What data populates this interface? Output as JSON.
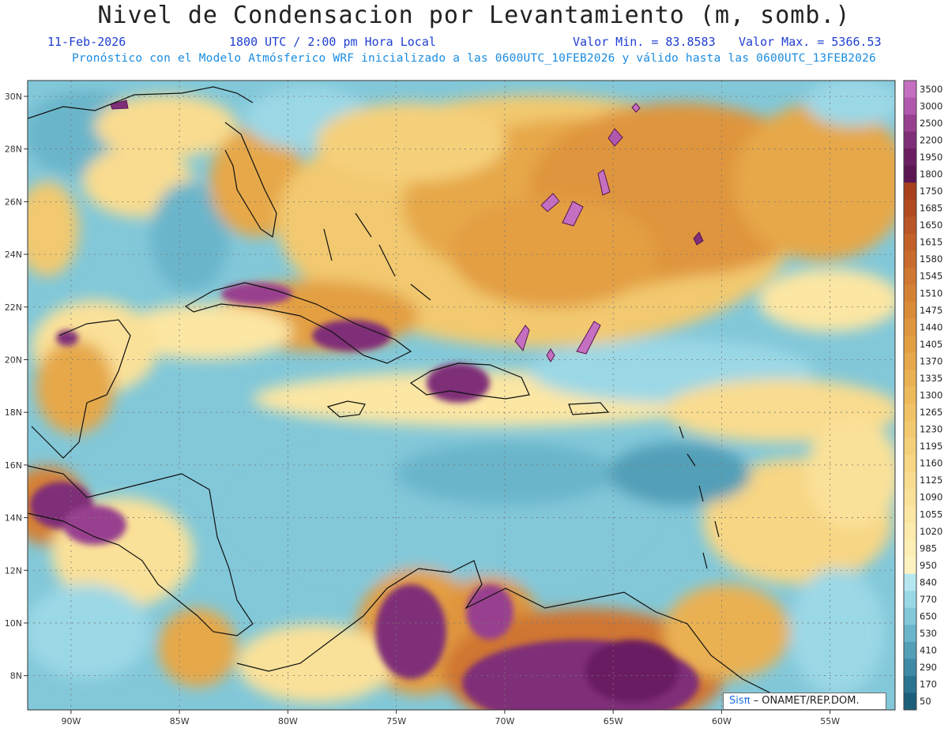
{
  "title": "Nivel de Condensacion por Levantamiento (m, somb.)",
  "header": {
    "date": "11-Feb-2026",
    "time": "1800 UTC / 2:00 pm Hora Local",
    "min_label": "Valor Min. = 83.8583",
    "max_label": "Valor Max. = 5366.53",
    "min_value": 83.8583,
    "max_value": 5366.53,
    "subtitle": "Pronóstico con el Modelo Atmósferico WRF inicializado a las 0600UTC_10FEB2026 y válido hasta las  0600UTC_13FEB2026"
  },
  "map": {
    "lon_range": [
      -92,
      -52
    ],
    "lat_range": [
      6.7,
      30.6
    ],
    "lat_ticks": [
      "30N",
      "28N",
      "26N",
      "24N",
      "22N",
      "20N",
      "18N",
      "16N",
      "14N",
      "12N",
      "10N",
      "8N"
    ],
    "lat_values": [
      30,
      28,
      26,
      24,
      22,
      20,
      18,
      16,
      14,
      12,
      10,
      8
    ],
    "lon_ticks": [
      "90W",
      "85W",
      "80W",
      "75W",
      "70W",
      "65W",
      "60W",
      "55W"
    ],
    "lon_values": [
      -90,
      -85,
      -80,
      -75,
      -70,
      -65,
      -60,
      -55
    ]
  },
  "legend": {
    "levels": [
      "3500",
      "3000",
      "2500",
      "2200",
      "1950",
      "1800",
      "1750",
      "1685",
      "1650",
      "1615",
      "1580",
      "1545",
      "1510",
      "1475",
      "1440",
      "1405",
      "1370",
      "1335",
      "1300",
      "1265",
      "1230",
      "1195",
      "1160",
      "1125",
      "1090",
      "1055",
      "1020",
      "985",
      "950",
      "840",
      "770",
      "650",
      "530",
      "410",
      "290",
      "170",
      "50"
    ],
    "colors": [
      "#c46fc0",
      "#b158ae",
      "#98408f",
      "#7f2e78",
      "#6b1f62",
      "#591650",
      "#a8401e",
      "#b14a21",
      "#ba5525",
      "#c26028",
      "#c96b2c",
      "#cf7630",
      "#d58134",
      "#da8b38",
      "#df953d",
      "#e39f42",
      "#e6a84a",
      "#eab152",
      "#edba5b",
      "#f0c265",
      "#f2c96f",
      "#f5d07a",
      "#f7d684",
      "#f9dc8f",
      "#fae199",
      "#fce6a3",
      "#fdeaad",
      "#fdeeb6",
      "#fef2c0",
      "#b6e7f0",
      "#9bd8e6",
      "#82c8d9",
      "#6ab5ca",
      "#539fb8",
      "#3e89a4",
      "#2b7490",
      "#1b5f7b"
    ]
  },
  "credit": {
    "sis": "Sisπ",
    "rest": " – ONAMET/REP.DOM."
  }
}
